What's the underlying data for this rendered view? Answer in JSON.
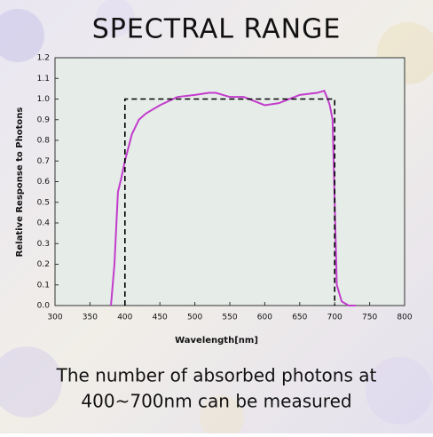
{
  "title": "SPECTRAL RANGE",
  "caption": [
    "The number of absorbed photons at",
    "400~700nm can be measured"
  ],
  "chart_data": {
    "type": "line",
    "xlabel": "Wavelength[nm]",
    "ylabel": "Relative Response to Photons",
    "xlim": [
      300,
      800
    ],
    "ylim": [
      0,
      1.2
    ],
    "xticks": [
      300,
      350,
      400,
      450,
      500,
      550,
      600,
      650,
      700,
      750,
      800
    ],
    "yticks": [
      {
        "value": 0,
        "label": "0.0"
      },
      0.1,
      0.2,
      0.3,
      0.4,
      0.5,
      0.6,
      0.7,
      0.8,
      0.9,
      {
        "value": 1,
        "label": "1.0"
      },
      1.1,
      1.2
    ],
    "series": [
      {
        "color": "#c23ccc",
        "x": [
          380,
          385,
          390,
          395,
          400,
          410,
          420,
          430,
          450,
          475,
          500,
          520,
          530,
          550,
          570,
          600,
          620,
          650,
          675,
          685,
          690,
          693,
          697,
          700,
          703,
          710,
          720,
          730
        ],
        "values": [
          0,
          0.2,
          0.55,
          0.62,
          0.7,
          0.83,
          0.9,
          0.93,
          0.97,
          1.01,
          1.02,
          1.03,
          1.03,
          1.01,
          1.01,
          0.97,
          0.98,
          1.02,
          1.03,
          1.04,
          1.0,
          0.97,
          0.9,
          0.5,
          0.1,
          0.02,
          0,
          0
        ]
      },
      {
        "color": "#000000",
        "dash": true,
        "x": [
          400,
          400,
          700,
          700
        ],
        "values": [
          0,
          1,
          1,
          0
        ]
      }
    ]
  }
}
